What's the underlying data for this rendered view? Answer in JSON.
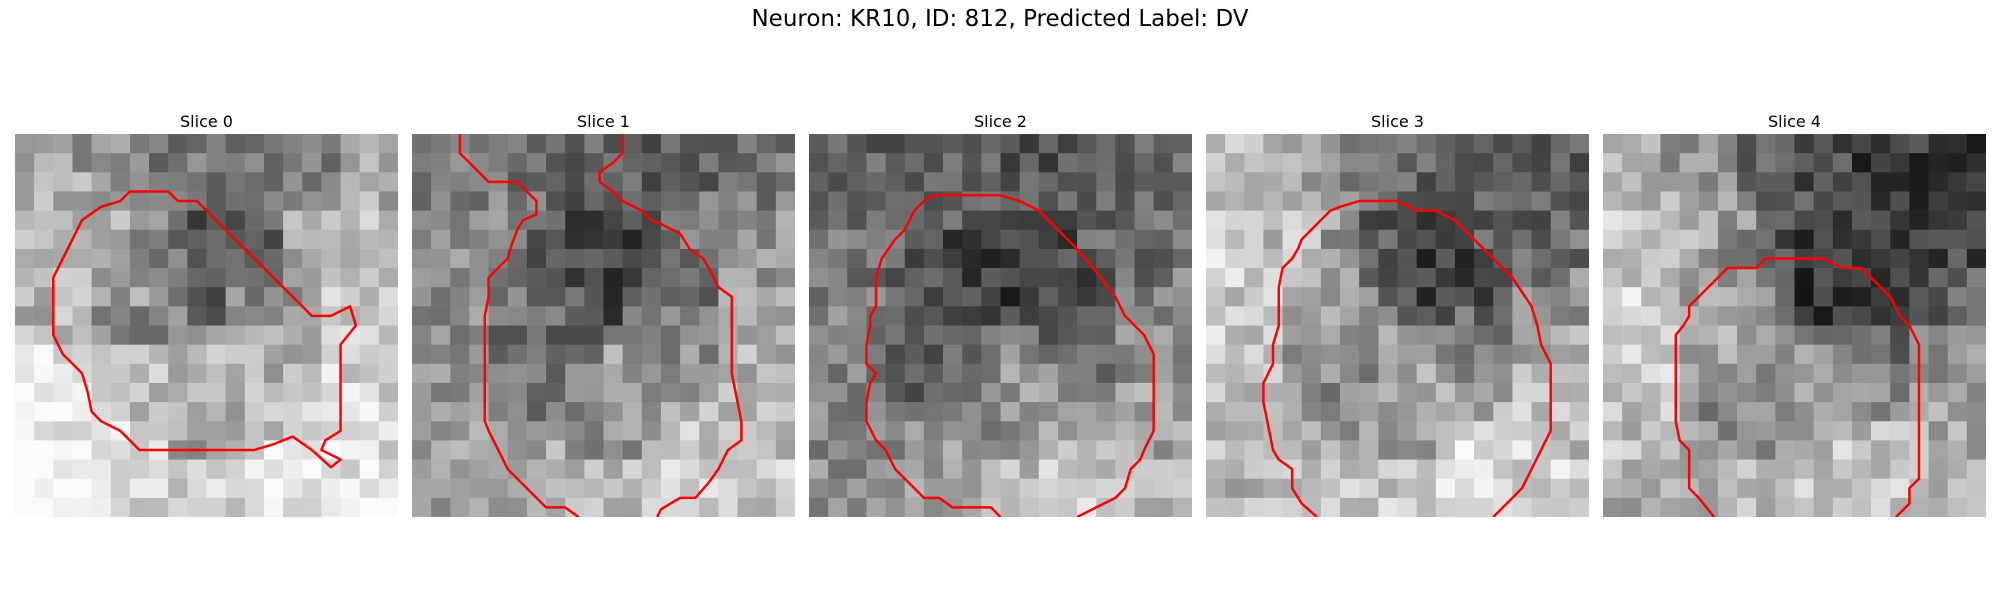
{
  "figure": {
    "title": "Neuron: KR10, ID: 812, Predicted Label: DV"
  },
  "panels": [
    {
      "title": "Slice 0",
      "contour": [
        [
          8.5,
          3.5
        ],
        [
          9.5,
          3.5
        ],
        [
          10.5,
          4.5
        ],
        [
          11.5,
          5.5
        ],
        [
          12.5,
          6.5
        ],
        [
          13.5,
          7.5
        ],
        [
          14.5,
          8.5
        ],
        [
          15.5,
          9.5
        ],
        [
          16.5,
          9.5
        ],
        [
          17.5,
          9.0
        ],
        [
          17.8,
          10.0
        ],
        [
          17.0,
          11.0
        ],
        [
          17.0,
          12.5
        ],
        [
          17.0,
          14.0
        ],
        [
          17.0,
          15.5
        ],
        [
          16.2,
          16.0
        ],
        [
          16.0,
          16.5
        ],
        [
          17.0,
          17.0
        ],
        [
          16.5,
          17.4
        ],
        [
          15.5,
          16.5
        ],
        [
          14.5,
          15.8
        ],
        [
          13.5,
          16.2
        ],
        [
          12.5,
          16.5
        ],
        [
          11.5,
          16.5
        ],
        [
          10.5,
          16.5
        ],
        [
          9.5,
          16.5
        ],
        [
          8.5,
          16.5
        ],
        [
          7.5,
          16.5
        ],
        [
          6.5,
          16.5
        ],
        [
          5.5,
          15.5
        ],
        [
          4.5,
          15.0
        ],
        [
          4.0,
          14.5
        ],
        [
          3.8,
          13.5
        ],
        [
          3.5,
          12.5
        ],
        [
          3.0,
          12.0
        ],
        [
          2.5,
          11.5
        ],
        [
          2.0,
          10.5
        ],
        [
          2.0,
          9.0
        ],
        [
          2.0,
          7.5
        ],
        [
          2.5,
          6.5
        ],
        [
          3.0,
          5.5
        ],
        [
          3.5,
          4.5
        ],
        [
          4.5,
          3.8
        ],
        [
          5.5,
          3.5
        ],
        [
          6.0,
          3.0
        ],
        [
          7.0,
          3.0
        ],
        [
          8.0,
          3.0
        ],
        [
          8.5,
          3.5
        ]
      ],
      "tones": [
        180,
        200,
        170,
        150,
        120,
        110,
        130,
        170,
        190,
        200,
        210,
        220,
        230,
        225,
        215,
        210,
        220,
        235,
        240,
        230
      ],
      "seed": 11
    },
    {
      "title": "Slice 1",
      "contour": [
        [
          2.5,
          0.0
        ],
        [
          2.5,
          1.0
        ],
        [
          3.5,
          2.0
        ],
        [
          4.0,
          2.5
        ],
        [
          5.5,
          2.5
        ],
        [
          6.0,
          3.0
        ],
        [
          6.5,
          3.5
        ],
        [
          6.5,
          4.2
        ],
        [
          5.8,
          4.5
        ],
        [
          5.5,
          5.0
        ],
        [
          5.2,
          5.8
        ],
        [
          5.0,
          6.5
        ],
        [
          4.5,
          7.0
        ],
        [
          4.0,
          7.5
        ],
        [
          4.0,
          8.5
        ],
        [
          3.8,
          9.5
        ],
        [
          3.8,
          11.0
        ],
        [
          3.8,
          12.5
        ],
        [
          3.8,
          14.0
        ],
        [
          3.8,
          15.0
        ],
        [
          4.0,
          15.5
        ],
        [
          4.5,
          16.5
        ],
        [
          5.0,
          17.5
        ],
        [
          5.5,
          18.0
        ],
        [
          6.0,
          18.5
        ],
        [
          7.0,
          19.5
        ],
        [
          8.0,
          19.5
        ],
        [
          8.7,
          20.0
        ]
      ],
      "contour2": [
        [
          12.8,
          20.0
        ],
        [
          13.0,
          19.6
        ],
        [
          14.0,
          19.0
        ],
        [
          14.8,
          19.0
        ],
        [
          15.5,
          18.2
        ],
        [
          16.0,
          17.5
        ],
        [
          16.5,
          16.5
        ],
        [
          17.2,
          16.0
        ],
        [
          17.2,
          15.0
        ],
        [
          17.0,
          14.0
        ],
        [
          16.8,
          13.0
        ],
        [
          16.7,
          12.5
        ],
        [
          16.7,
          11.5
        ],
        [
          16.7,
          10.0
        ],
        [
          16.7,
          8.5
        ],
        [
          16.0,
          8.0
        ],
        [
          15.5,
          7.0
        ],
        [
          15.2,
          6.5
        ],
        [
          14.5,
          6.0
        ],
        [
          14.0,
          5.2
        ],
        [
          13.0,
          4.7
        ],
        [
          12.5,
          4.5
        ],
        [
          12.0,
          4.0
        ],
        [
          11.0,
          3.5
        ],
        [
          10.5,
          3.0
        ],
        [
          9.8,
          2.5
        ],
        [
          9.8,
          2.0
        ],
        [
          10.5,
          1.5
        ],
        [
          11.0,
          1.0
        ],
        [
          11.0,
          0.0
        ]
      ],
      "tones": [
        140,
        150,
        130,
        110,
        100,
        95,
        100,
        120,
        150,
        170,
        180,
        190,
        200,
        210,
        190,
        180,
        170,
        160,
        150,
        140
      ],
      "seed": 23
    },
    {
      "title": "Slice 2",
      "contour": [
        [
          10.0,
          20.0
        ],
        [
          9.5,
          19.5
        ],
        [
          8.5,
          19.5
        ],
        [
          7.5,
          19.5
        ],
        [
          6.8,
          19.0
        ],
        [
          6.0,
          19.0
        ],
        [
          5.5,
          18.5
        ],
        [
          5.0,
          18.0
        ],
        [
          4.5,
          17.5
        ],
        [
          4.0,
          16.5
        ],
        [
          3.5,
          16.0
        ],
        [
          3.0,
          15.0
        ],
        [
          3.0,
          14.0
        ],
        [
          3.2,
          13.0
        ],
        [
          3.5,
          12.5
        ],
        [
          3.0,
          12.0
        ],
        [
          3.0,
          11.0
        ],
        [
          3.2,
          10.0
        ],
        [
          3.2,
          9.5
        ],
        [
          3.5,
          9.0
        ],
        [
          3.5,
          7.5
        ],
        [
          3.8,
          6.5
        ],
        [
          4.5,
          5.5
        ],
        [
          5.0,
          5.0
        ],
        [
          5.5,
          4.0
        ],
        [
          6.0,
          3.5
        ],
        [
          6.5,
          3.2
        ],
        [
          7.0,
          3.2
        ],
        [
          8.0,
          3.2
        ],
        [
          9.0,
          3.2
        ],
        [
          10.0,
          3.2
        ],
        [
          11.0,
          3.5
        ],
        [
          12.0,
          4.0
        ],
        [
          13.0,
          5.0
        ],
        [
          14.0,
          6.0
        ],
        [
          15.0,
          7.2
        ],
        [
          16.0,
          8.5
        ],
        [
          16.5,
          9.5
        ],
        [
          17.5,
          10.5
        ],
        [
          18.0,
          11.5
        ],
        [
          18.0,
          13.0
        ],
        [
          18.0,
          14.5
        ],
        [
          18.0,
          15.5
        ],
        [
          17.5,
          16.5
        ],
        [
          17.3,
          17.0
        ],
        [
          16.8,
          17.5
        ],
        [
          16.5,
          18.5
        ],
        [
          16.0,
          19.0
        ],
        [
          15.0,
          19.5
        ],
        [
          14.0,
          20.0
        ]
      ],
      "tones": [
        130,
        120,
        110,
        100,
        90,
        85,
        90,
        100,
        110,
        125,
        140,
        160,
        180,
        200,
        190,
        170,
        150,
        140,
        135,
        130
      ],
      "seed": 37
    },
    {
      "title": "Slice 3",
      "contour": [
        [
          5.8,
          20.0
        ],
        [
          5.0,
          19.3
        ],
        [
          4.5,
          18.5
        ],
        [
          4.5,
          17.5
        ],
        [
          3.8,
          17.0
        ],
        [
          3.5,
          16.5
        ],
        [
          3.2,
          15.0
        ],
        [
          3.0,
          14.0
        ],
        [
          3.0,
          13.0
        ],
        [
          3.5,
          12.0
        ],
        [
          3.5,
          11.0
        ],
        [
          3.8,
          10.0
        ],
        [
          3.8,
          9.0
        ],
        [
          3.8,
          8.0
        ],
        [
          4.0,
          7.0
        ],
        [
          4.5,
          6.5
        ],
        [
          4.8,
          6.0
        ],
        [
          5.0,
          5.5
        ],
        [
          5.5,
          5.0
        ],
        [
          6.0,
          4.5
        ],
        [
          6.5,
          4.0
        ],
        [
          7.0,
          3.8
        ],
        [
          8.0,
          3.5
        ],
        [
          9.0,
          3.5
        ],
        [
          10.0,
          3.5
        ],
        [
          11.0,
          4.0
        ],
        [
          12.0,
          4.0
        ],
        [
          13.0,
          4.5
        ],
        [
          14.0,
          5.5
        ],
        [
          15.0,
          6.5
        ],
        [
          16.0,
          7.5
        ],
        [
          17.0,
          9.0
        ],
        [
          17.3,
          10.0
        ],
        [
          17.5,
          11.0
        ],
        [
          18.0,
          12.0
        ],
        [
          18.0,
          13.5
        ],
        [
          18.0,
          14.5
        ],
        [
          18.0,
          15.5
        ],
        [
          17.5,
          16.5
        ],
        [
          17.0,
          17.5
        ],
        [
          16.5,
          18.5
        ],
        [
          16.0,
          19.0
        ],
        [
          15.0,
          20.0
        ]
      ],
      "tones": [
        200,
        210,
        190,
        160,
        120,
        100,
        90,
        95,
        110,
        140,
        170,
        190,
        210,
        220,
        210,
        200,
        190,
        180,
        190,
        200
      ],
      "seed": 51
    },
    {
      "title": "Slice 4",
      "contour": [
        [
          5.8,
          20.0
        ],
        [
          5.0,
          19.0
        ],
        [
          4.5,
          18.5
        ],
        [
          4.5,
          17.5
        ],
        [
          4.5,
          16.5
        ],
        [
          4.0,
          16.0
        ],
        [
          3.8,
          15.0
        ],
        [
          3.8,
          13.5
        ],
        [
          3.8,
          12.0
        ],
        [
          3.8,
          10.5
        ],
        [
          4.2,
          10.0
        ],
        [
          4.5,
          9.5
        ],
        [
          4.5,
          9.0
        ],
        [
          5.0,
          8.5
        ],
        [
          5.5,
          8.0
        ],
        [
          6.5,
          7.0
        ],
        [
          7.0,
          7.0
        ],
        [
          8.0,
          7.0
        ],
        [
          8.5,
          6.5
        ],
        [
          9.5,
          6.5
        ],
        [
          10.5,
          6.5
        ],
        [
          11.5,
          6.5
        ],
        [
          12.5,
          7.0
        ],
        [
          13.5,
          7.0
        ],
        [
          14.0,
          7.5
        ],
        [
          15.0,
          8.5
        ],
        [
          15.5,
          9.5
        ],
        [
          16.0,
          10.0
        ],
        [
          16.5,
          11.0
        ],
        [
          16.5,
          12.5
        ],
        [
          16.5,
          14.0
        ],
        [
          16.5,
          15.5
        ],
        [
          16.5,
          17.0
        ],
        [
          16.5,
          18.0
        ],
        [
          16.0,
          18.5
        ],
        [
          16.0,
          19.3
        ],
        [
          15.3,
          20.0
        ]
      ],
      "tones": [
        210,
        200,
        180,
        150,
        110,
        80,
        60,
        55,
        70,
        100,
        140,
        170,
        190,
        200,
        195,
        185,
        180,
        175,
        190,
        205
      ],
      "seed": 67
    }
  ],
  "colors": {
    "contour": "#ff0000"
  }
}
